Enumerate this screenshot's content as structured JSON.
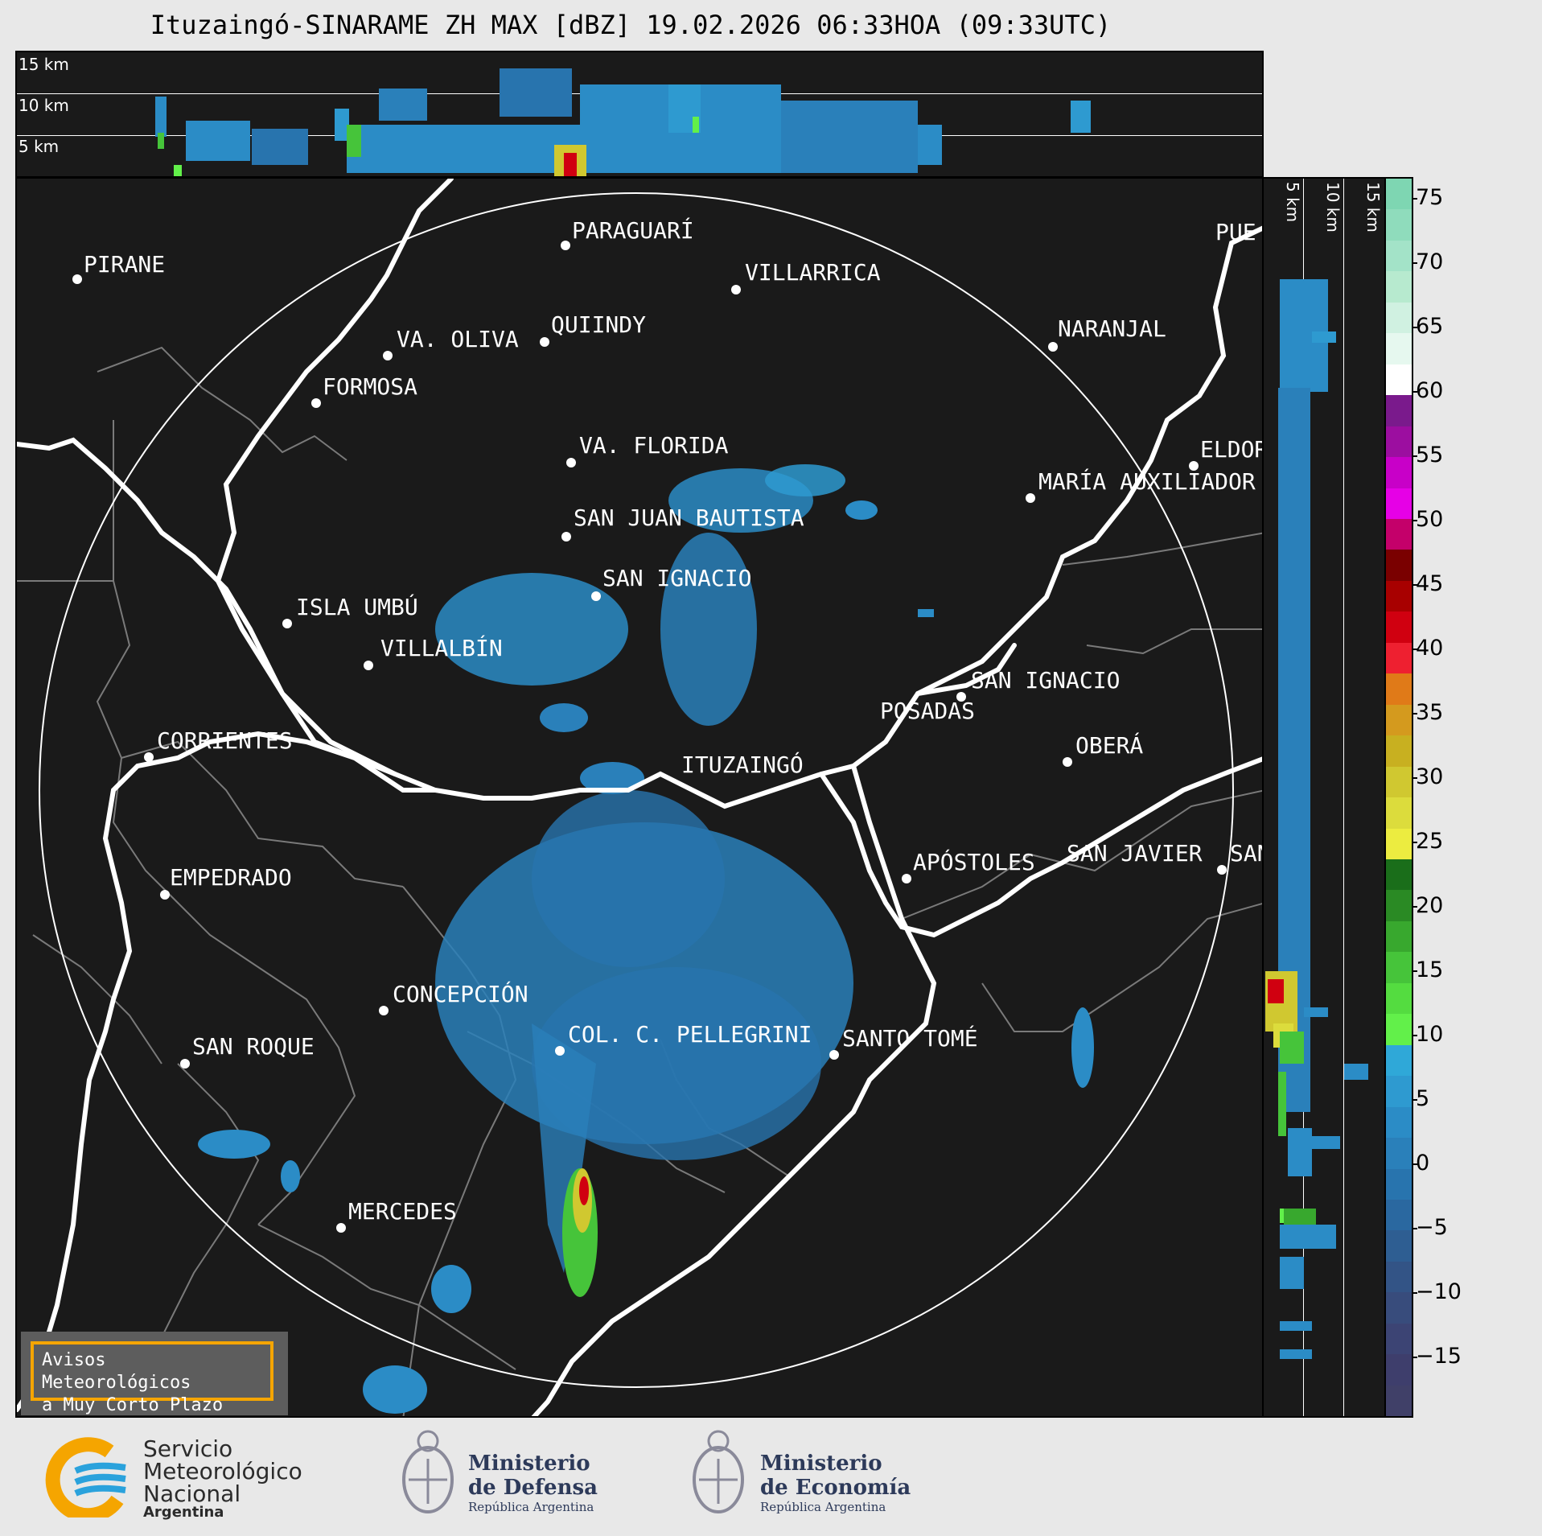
{
  "title": "Ituzaingó-SINARAME ZH MAX [dBZ] 19.02.2026 06:33HOA (09:33UTC)",
  "height_labels": [
    "15 km",
    "10 km",
    "5 km"
  ],
  "cities": [
    {
      "name": "PARAGUARÍ"
    },
    {
      "name": "PIRANE"
    },
    {
      "name": "VILLARRICA"
    },
    {
      "name": "QUIINDY"
    },
    {
      "name": "VA. OLIVA"
    },
    {
      "name": "NARANJAL"
    },
    {
      "name": "FORMOSA"
    },
    {
      "name": "VA. FLORIDA"
    },
    {
      "name": "ELDOR"
    },
    {
      "name": "MARÍA AUXILIADOR"
    },
    {
      "name": "SAN JUAN BAUTISTA"
    },
    {
      "name": "SAN IGNACIO"
    },
    {
      "name": "ISLA UMBÚ"
    },
    {
      "name": "VILLALBÍN"
    },
    {
      "name": "SAN IGNACIO"
    },
    {
      "name": "POSADAS"
    },
    {
      "name": "CORRIENTES"
    },
    {
      "name": "ITUZAINGÓ"
    },
    {
      "name": "OBERÁ"
    },
    {
      "name": "EMPEDRADO"
    },
    {
      "name": "APÓSTOLES"
    },
    {
      "name": "SAN JAVIER"
    },
    {
      "name": "SAN"
    },
    {
      "name": "CONCEPCIÓN"
    },
    {
      "name": "COL. C. PELLEGRINI"
    },
    {
      "name": "SANTO TOMÉ"
    },
    {
      "name": "SAN ROQUE"
    },
    {
      "name": "MERCEDES"
    },
    {
      "name": "PUE"
    }
  ],
  "colorbar": {
    "ticks": [
      "75",
      "70",
      "65",
      "60",
      "55",
      "50",
      "45",
      "40",
      "35",
      "30",
      "25",
      "20",
      "15",
      "10",
      "5",
      "0",
      "−5",
      "−10",
      "−15"
    ],
    "colors": [
      "#7ed6b2",
      "#8fdcbc",
      "#a3e3c8",
      "#b7eacf",
      "#d0f1e1",
      "#e6f8ef",
      "#ffffff",
      "#7a1a8c",
      "#9c0ea0",
      "#c800c8",
      "#e600e6",
      "#c4006a",
      "#7a0000",
      "#a80000",
      "#d00010",
      "#ee2030",
      "#e07a18",
      "#d49a1e",
      "#c8b020",
      "#d0c830",
      "#dcdc3c",
      "#ecec40",
      "#1a6e1a",
      "#2a8a24",
      "#38a82e",
      "#46c43a",
      "#54dc40",
      "#62f04a",
      "#2fa8d8",
      "#2e9ad0",
      "#2b8cc6",
      "#2a80ba",
      "#2874ae",
      "#2a68a0",
      "#2e5e92",
      "#335486",
      "#384c7c",
      "#3c4474",
      "#3e3e6c",
      "#404068"
    ]
  },
  "alert": {
    "line1": "Avisos Meteorológicos",
    "line2": "a Muy Corto Plazo"
  },
  "logos": {
    "smn": {
      "l1": "Servicio",
      "l2": "Meteorológico",
      "l3": "Nacional",
      "l4": "Argentina"
    },
    "defensa": {
      "l1": "Ministerio",
      "l2": "de Defensa",
      "l3": "República Argentina"
    },
    "economia": {
      "l1": "Ministerio",
      "l2": "de Economía",
      "l3": "República Argentina"
    }
  }
}
